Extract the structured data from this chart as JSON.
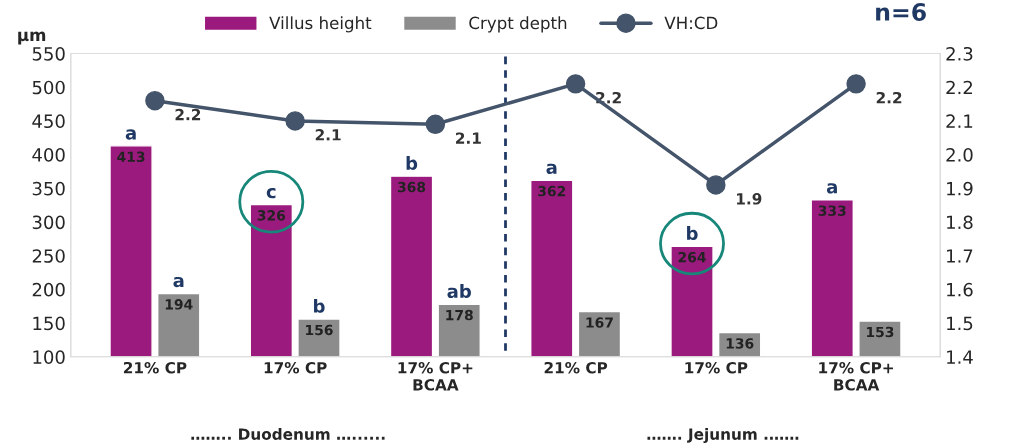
{
  "chart_data": {
    "type": "bar",
    "subtitle": "n=6",
    "ylabel": "µm",
    "categories": [
      "21% CP",
      "17% CP",
      "17% CP+\nBCAA",
      "21% CP",
      "17% CP",
      "17% CP+\nBCAA"
    ],
    "series": [
      {
        "name": "Villus height",
        "color": "#9b1a7d",
        "values": [
          413,
          326,
          368,
          362,
          264,
          333
        ]
      },
      {
        "name": "Crypt depth",
        "color": "#8c8c8c",
        "values": [
          194,
          156,
          178,
          167,
          136,
          153
        ]
      },
      {
        "name": "VH:CD",
        "type": "line",
        "axis": "y2",
        "color": "#44546a",
        "marker": "circle",
        "values": [
          2.16,
          2.1,
          2.09,
          2.21,
          1.91,
          2.21
        ],
        "value_labels": [
          "2.2",
          "2.1",
          "2.1",
          "2.2",
          "1.9",
          "2.2"
        ]
      }
    ],
    "data_labels": true,
    "ylim": [
      100,
      550
    ],
    "yticks": [
      100,
      150,
      200,
      250,
      300,
      350,
      400,
      450,
      500,
      550
    ],
    "y2lim": [
      1.4,
      2.3
    ],
    "y2ticks": [
      1.4,
      1.5,
      1.6,
      1.7,
      1.8,
      1.9,
      {
        "value": 2.0,
        "label": "2.0"
      },
      2.1,
      2.2,
      2.3
    ],
    "grid": false,
    "legend": "top",
    "annotations": [
      {
        "text": "a",
        "y": 413
      },
      {
        "text": "c",
        "y": 326
      },
      {
        "text": "b",
        "y": 368
      },
      {
        "text": "a",
        "y": 362
      },
      {
        "text": "b",
        "y": 264
      },
      {
        "text": "a",
        "y": 333
      },
      {
        "text": "a",
        "y": 194
      },
      {
        "text": "b",
        "y": 156
      },
      {
        "text": "ab",
        "y": 178
      },
      "…….. Duodenum …......",
      "……. Jejunum .……"
    ]
  }
}
